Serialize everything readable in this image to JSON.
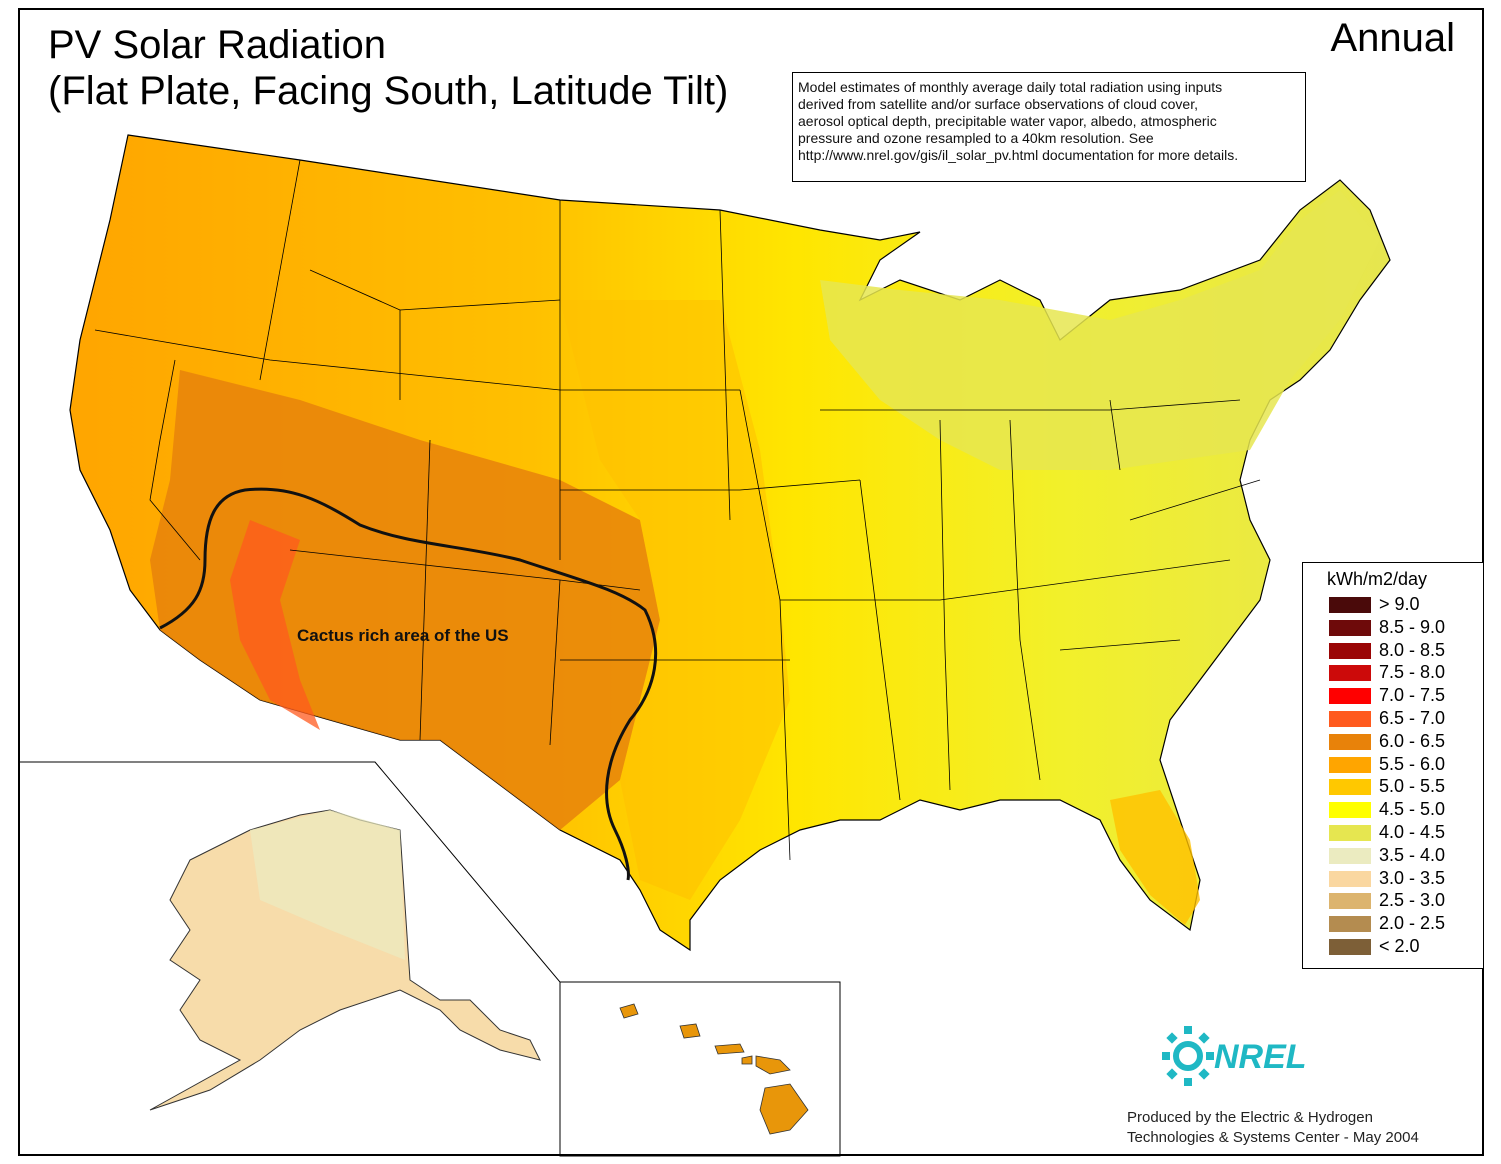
{
  "title": {
    "line1": "PV Solar Radiation",
    "line2": "(Flat Plate, Facing South, Latitude Tilt)"
  },
  "period": "Annual",
  "note": {
    "lines": [
      "Model estimates of monthly average daily total radiation using inputs",
      "derived from satellite and/or surface observations of cloud cover,",
      "aerosol optical depth, precipitable water vapor, albedo, atmospheric",
      "pressure and ozone resampled to a 40km resolution.  See",
      "http://www.nrel.gov/gis/il_solar_pv.html documentation for more details."
    ]
  },
  "annotation": "Cactus rich area of the US",
  "legend": {
    "title": "kWh/m2/day",
    "items": [
      {
        "label": "> 9.0",
        "color": "#4a0a0a"
      },
      {
        "label": "8.5 - 9.0",
        "color": "#6e0a0a"
      },
      {
        "label": "8.0 - 8.5",
        "color": "#9a0505"
      },
      {
        "label": "7.5 - 8.0",
        "color": "#cc0a0a"
      },
      {
        "label": "7.0 - 7.5",
        "color": "#ff0000"
      },
      {
        "label": "6.5 - 7.0",
        "color": "#ff5a1e"
      },
      {
        "label": "6.0 - 6.5",
        "color": "#e8820a"
      },
      {
        "label": "5.5 - 6.0",
        "color": "#ffa500"
      },
      {
        "label": "5.0 - 5.5",
        "color": "#ffc800"
      },
      {
        "label": "4.5 - 5.0",
        "color": "#ffff00"
      },
      {
        "label": "4.0 - 4.5",
        "color": "#e6e650"
      },
      {
        "label": "3.5 - 4.0",
        "color": "#ebebc0"
      },
      {
        "label": "3.0 - 3.5",
        "color": "#fad7a0"
      },
      {
        "label": "2.5 - 3.0",
        "color": "#dcb46e"
      },
      {
        "label": "2.0 - 2.5",
        "color": "#b48c50"
      },
      {
        "label": "< 2.0",
        "color": "#7d5f37"
      }
    ]
  },
  "logo": {
    "text": "NREL",
    "color": "#1fb8c4"
  },
  "credit": {
    "line1": "Produced by the Electric & Hydrogen",
    "line2": "Technologies & Systems Center - May 2004"
  }
}
